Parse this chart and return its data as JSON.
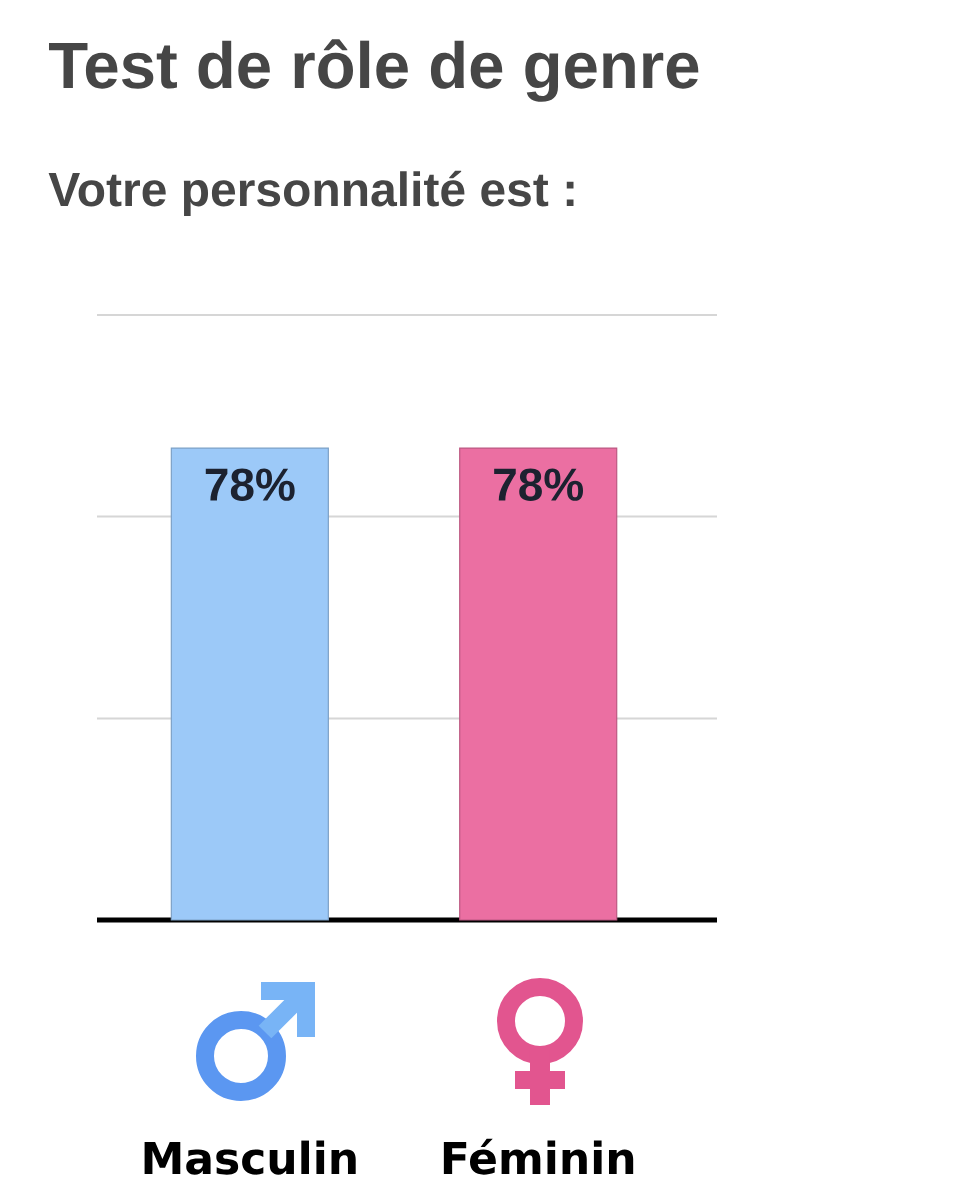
{
  "chart_data": {
    "type": "bar",
    "title": "Test de rôle de genre",
    "subtitle": "Votre personnalité est :",
    "categories": [
      "Masculin",
      "Féminin"
    ],
    "values": [
      78,
      78
    ],
    "colors": [
      "#9cc9f8",
      "#eb6fa2"
    ],
    "value_labels": [
      "78%",
      "78%"
    ],
    "ylim": [
      0,
      100
    ],
    "yticks": [
      {
        "value": 33.3,
        "label": null
      },
      {
        "value": 66.7,
        "label": null
      },
      {
        "value": 100,
        "label": null
      }
    ],
    "grid": "y",
    "tick_labels": "x"
  }
}
